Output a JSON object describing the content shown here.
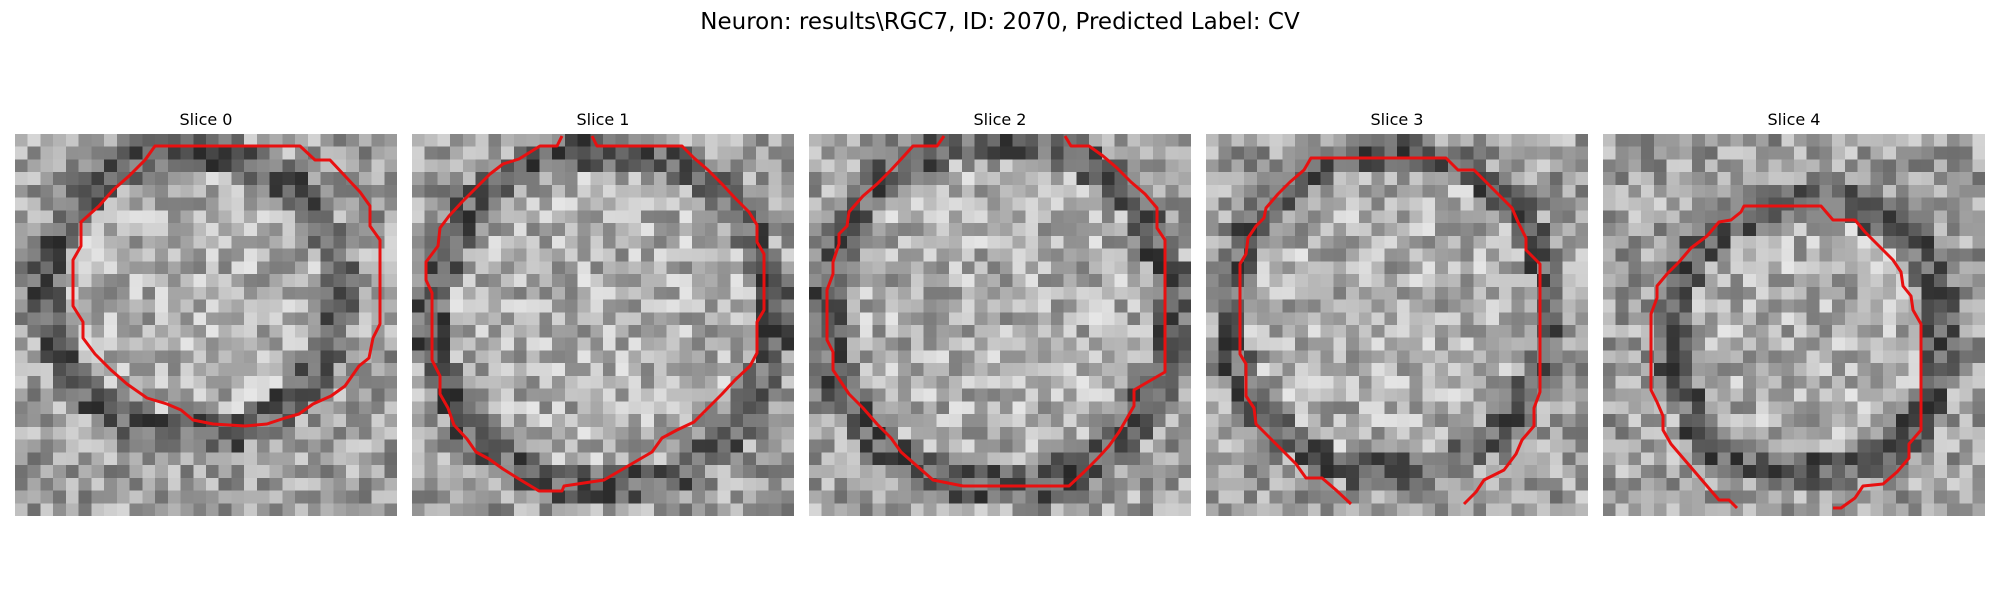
{
  "figure": {
    "title": "Neuron: results\\RGC7, ID: 2070, Predicted Label: CV",
    "contour_color": "#e81010"
  },
  "slices": [
    {
      "title": "Slice 0"
    },
    {
      "title": "Slice 1"
    },
    {
      "title": "Slice 2"
    },
    {
      "title": "Slice 3"
    },
    {
      "title": "Slice 4"
    }
  ]
}
